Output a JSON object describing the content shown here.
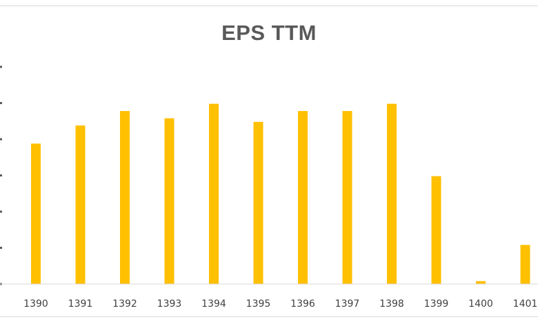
{
  "chart_data": {
    "type": "bar",
    "title": "EPS TTM",
    "xlabel": "",
    "ylabel": "",
    "categories": [
      "1390",
      "1391",
      "1392",
      "1393",
      "1394",
      "1395",
      "1396",
      "1397",
      "1398",
      "1399",
      "1400",
      "1401"
    ],
    "values": [
      1940,
      2190,
      2390,
      2290,
      2490,
      2240,
      2390,
      2390,
      2490,
      1490,
      40,
      540
    ],
    "ylim": [
      0,
      3000
    ],
    "grid": false,
    "bar_color": "#ffc000",
    "axis_color": "#d9d9d9"
  }
}
